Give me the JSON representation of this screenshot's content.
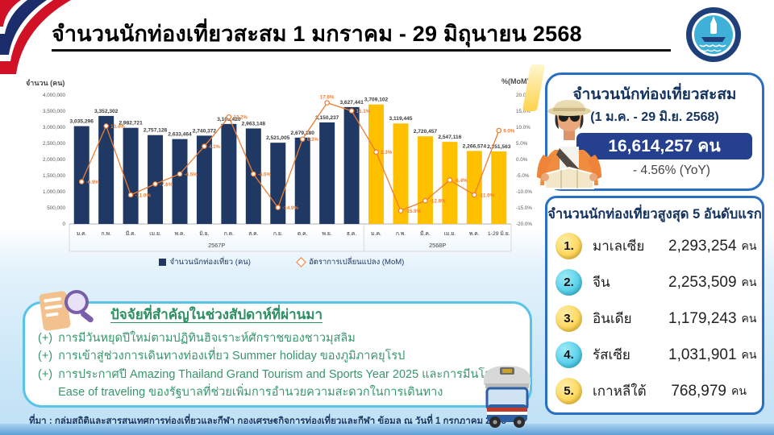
{
  "header": {
    "title": "จำนวนนักท่องเที่ยวสะสม 1 มกราคม - 29 มิถุนายน 2568"
  },
  "chart_data": {
    "type": "bar+line",
    "y_left": {
      "title": "จำนวน (คน)",
      "min": 0,
      "max": 4000000,
      "step": 500000
    },
    "y_right": {
      "title": "%(MoM)",
      "min": -20,
      "max": 20,
      "step": 5
    },
    "groups": [
      {
        "label": "2567P",
        "count": 12
      },
      {
        "label": "2568P",
        "count": 6
      }
    ],
    "categories": [
      "ม.ค.",
      "ก.พ.",
      "มี.ค.",
      "เม.ย.",
      "พ.ค.",
      "มิ.ย.",
      "ก.ค.",
      "ส.ค.",
      "ก.ย.",
      "ต.ค.",
      "พ.ย.",
      "ธ.ค.",
      "ม.ค.",
      "ก.พ.",
      "มี.ค.",
      "เม.ย.",
      "พ.ค.",
      "1-29 มิ.ย."
    ],
    "bars": {
      "name": "จำนวนนักท่องเที่ยว (คน)",
      "values": [
        3035296,
        3352302,
        2982721,
        2757128,
        2633464,
        2740372,
        3103420,
        2963148,
        2521005,
        2679180,
        3150237,
        3627441,
        3709102,
        3119445,
        2720457,
        2547116,
        2266574,
        2251563
      ],
      "group_colors": [
        "#1f3864",
        "#ffc000"
      ]
    },
    "line": {
      "name": "อัตราการเปลี่ยนแปลง (MoM)",
      "values": [
        -6.9,
        10.4,
        -11.0,
        -7.6,
        -4.5,
        4.1,
        13.2,
        -4.5,
        -14.9,
        6.3,
        17.6,
        15.1,
        2.3,
        -15.9,
        -12.8,
        -6.4,
        -11.0,
        9.0
      ],
      "color": "#ed7d31"
    },
    "legend": [
      "จำนวนนักท่องเที่ยว (คน)",
      "อัตราการเปลี่ยนแปลง (MoM)"
    ]
  },
  "summary": {
    "heading": "จำนวนนักท่องเที่ยวสะสม",
    "period": "(1 ม.ค. - 29 มิ.ย. 2568)",
    "total": "16,614,257 คน",
    "yoy": "- 4.56% (YoY)"
  },
  "ranking": {
    "heading": "จำนวนนักท่องเที่ยวสูงสุด 5 อันดับแรก",
    "rows": [
      {
        "rank": "1.",
        "country": "มาเลเซีย",
        "value": "2,293,254",
        "unit": "คน",
        "badge": "yellow"
      },
      {
        "rank": "2.",
        "country": "จีน",
        "value": "2,253,509",
        "unit": "คน",
        "badge": "cyan"
      },
      {
        "rank": "3.",
        "country": "อินเดีย",
        "value": "1,179,243",
        "unit": "คน",
        "badge": "yellow"
      },
      {
        "rank": "4.",
        "country": "รัสเซีย",
        "value": "1,031,901",
        "unit": "คน",
        "badge": "cyan"
      },
      {
        "rank": "5.",
        "country": "เกาหลีใต้",
        "value": "768,979",
        "unit": "คน",
        "badge": "yellow"
      }
    ]
  },
  "factors": {
    "heading": "ปัจจัยที่สำคัญในช่วงสัปดาห์ที่ผ่านมา",
    "bullet": "(+)",
    "items": [
      "การมีวันหยุดปีใหม่ตามปฏิทินฮิจเราะห์ศักราชของชาวมุสลิม",
      "การเข้าสู่ช่วงการเดินทางท่องเที่ยว Summer holiday ของภูมิภาคยุโรป",
      "การประกาศปี Amazing Thailand Grand Tourism and Sports Year 2025 และการมีนโยบาย Ease of traveling ของรัฐบาลที่ช่วยเพิ่มการอำนวยความสะดวกในการเดินทาง"
    ]
  },
  "source": "ที่มา : กลุ่มสถิติและสารสนเทศการท่องเที่ยวและกีฬา กองเศรษฐกิจการท่องเที่ยวและกีฬา ข้อมูล ณ วันที่ 1 กรกฎาคม 2568",
  "colors": {
    "bar_2567": "#1f3864",
    "bar_2568": "#ffc000",
    "mom_line": "#ed7d31",
    "panel_border": "#2b6fc4",
    "factors_border": "#59c3e8",
    "factors_text": "#37966b",
    "total_pill": "#24408e"
  }
}
